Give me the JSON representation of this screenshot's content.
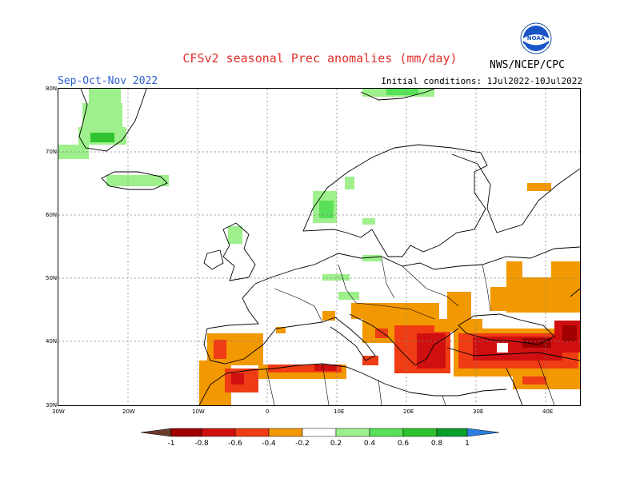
{
  "header": {
    "title": "CFSv2 seasonal Prec anomalies (mm/day)",
    "season": "Sep-Oct-Nov 2022",
    "initial_conditions": "Initial conditions: 1Jul2022-10Jul2022",
    "agency": "NWS/NCEP/CPC",
    "logo_text": "NOAA"
  },
  "axes": {
    "y_labels": [
      "80N",
      "70N",
      "60N",
      "50N",
      "40N",
      "30N"
    ],
    "x_labels": [
      "30W",
      "20W",
      "10W",
      "0",
      "10E",
      "20E",
      "30E",
      "40E"
    ]
  },
  "legend": {
    "tick_labels": [
      "-1",
      "-0.8",
      "-0.6",
      "-0.4",
      "-0.2",
      "0.2",
      "0.4",
      "0.6",
      "0.8",
      "1"
    ],
    "colors": [
      "#6b3a2a",
      "#a00000",
      "#d01010",
      "#f03c14",
      "#f29800",
      "#ffffff",
      "#9ef08c",
      "#58e058",
      "#2fc42f",
      "#0a9e2a",
      "#2a7fe0"
    ]
  },
  "colors": {
    "title": "#e0302a",
    "season": "#2f5fd0",
    "orange": "#f29800",
    "red_orange": "#f03c14",
    "red": "#d01010",
    "dark_red": "#a00000",
    "brown": "#7a4a3a",
    "light_green": "#9ef08c",
    "green": "#58e058",
    "dark_green": "#2fc42f"
  }
}
